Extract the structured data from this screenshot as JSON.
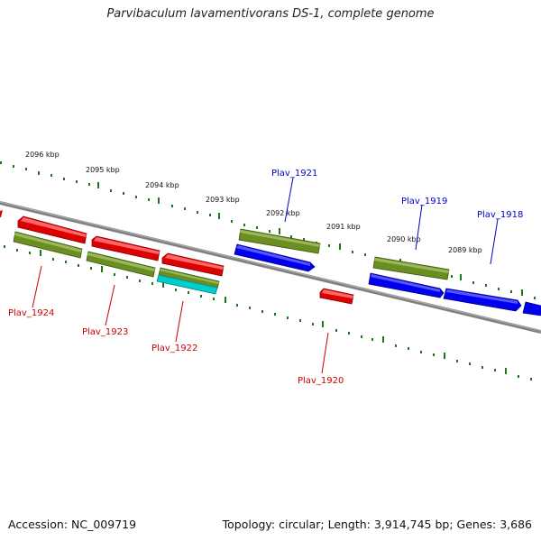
{
  "title": "Parvibaculum lavamentivorans DS-1, complete genome",
  "footer": {
    "accession": "Accession: NC_009719",
    "summary": "Topology: circular; Length: 3,914,745 bp; Genes: 3,686"
  },
  "colors": {
    "reverse_gene": "#dd0000",
    "forward_gene": "#0000ee",
    "olive_track": "#6b8e23",
    "cyan_track": "#00cccc",
    "scale_ticks": "#1a7a1a",
    "backbone": "#808080",
    "red_label": "#cc0000",
    "blue_label": "#0000cc"
  },
  "scale_labels": [
    "2096 kbp",
    "2095 kbp",
    "2094 kbp",
    "2093 kbp",
    "2092 kbp",
    "2091 kbp",
    "2090 kbp",
    "2089 kbp"
  ],
  "gene_labels_top": [
    "Plav_1921",
    "Plav_1919",
    "Plav_1918"
  ],
  "gene_labels_bottom": [
    "Plav_1924",
    "Plav_1923",
    "Plav_1922",
    "Plav_1920"
  ]
}
